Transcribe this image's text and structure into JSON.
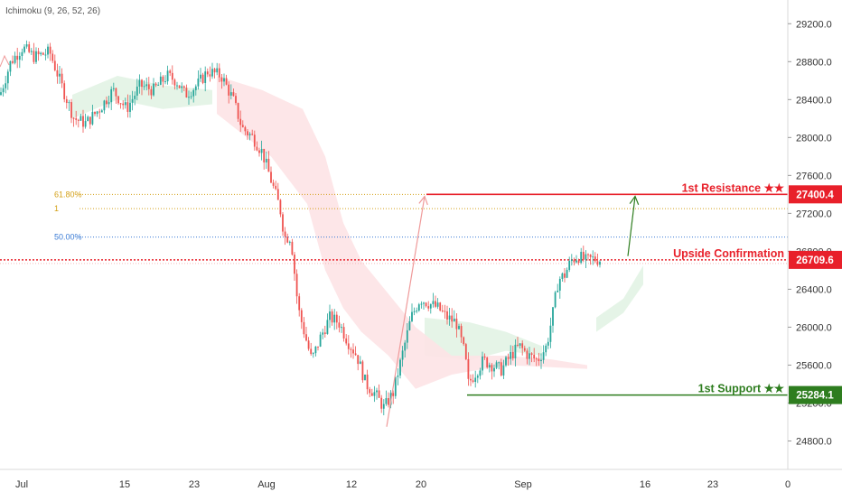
{
  "indicator_label": "Ichimoku (9, 26, 52, 26)",
  "colors": {
    "up": "#26a69a",
    "down": "#ef5350",
    "resistance": "#e8202a",
    "support": "#2e7d1f",
    "fib": "#d4a017",
    "fib50": "#3a7bd5",
    "confirmation": "#e8202a",
    "cloud_bull": "#e2f3e4",
    "cloud_bear": "#fde3e5",
    "axis_text": "#333333"
  },
  "y_axis_ticks": [
    "29200.0",
    "28800.0",
    "28400.0",
    "28000.0",
    "27600.0",
    "27200.0",
    "26800.0",
    "26400.0",
    "26000.0",
    "25600.0",
    "25200.0",
    "24800.0"
  ],
  "x_axis_ticks": [
    "Jul",
    "15",
    "23",
    "Aug",
    "12",
    "20",
    "Sep",
    "16",
    "23",
    "0"
  ],
  "fib_labels": {
    "fib618": "61.80%",
    "fib1": "1",
    "fib50": "50.00%"
  },
  "annotations": {
    "resistance": {
      "label": "1st Resistance ★★",
      "value": "27400.4"
    },
    "confirmation": {
      "label": "Upside Confirmation",
      "value": "26709.6"
    },
    "support": {
      "label": "1st Support ★★",
      "value": "25284.1"
    }
  },
  "chart_data": {
    "type": "candlestick",
    "title": "",
    "xlabel": "",
    "ylabel": "",
    "ylim": [
      24500,
      29450
    ],
    "x_labels": [
      "Jul",
      "15",
      "23",
      "Aug",
      "12",
      "20",
      "Sep",
      "16",
      "23",
      "0"
    ],
    "y_ticks": [
      29200,
      28800,
      28400,
      28000,
      27600,
      27200,
      26800,
      26400,
      26000,
      25600,
      25200,
      24800
    ],
    "grid": false,
    "indicator": "Ichimoku (9, 26, 52, 26)",
    "price_path": [
      [
        0,
        28450
      ],
      [
        12,
        28800
      ],
      [
        25,
        28950
      ],
      [
        38,
        28850
      ],
      [
        55,
        28900
      ],
      [
        70,
        28500
      ],
      [
        82,
        28200
      ],
      [
        95,
        28150
      ],
      [
        110,
        28300
      ],
      [
        125,
        28500
      ],
      [
        140,
        28300
      ],
      [
        155,
        28550
      ],
      [
        170,
        28500
      ],
      [
        185,
        28650
      ],
      [
        195,
        28600
      ],
      [
        205,
        28450
      ],
      [
        218,
        28550
      ],
      [
        230,
        28700
      ],
      [
        245,
        28650
      ],
      [
        258,
        28400
      ],
      [
        268,
        28100
      ],
      [
        280,
        28000
      ],
      [
        290,
        27850
      ],
      [
        300,
        27550
      ],
      [
        310,
        27250
      ],
      [
        315,
        26950
      ],
      [
        322,
        26950
      ],
      [
        330,
        26200
      ],
      [
        338,
        25900
      ],
      [
        345,
        25650
      ],
      [
        355,
        25900
      ],
      [
        365,
        26100
      ],
      [
        375,
        26050
      ],
      [
        385,
        25850
      ],
      [
        395,
        25700
      ],
      [
        405,
        25400
      ],
      [
        415,
        25300
      ],
      [
        425,
        25150
      ],
      [
        435,
        25300
      ],
      [
        445,
        25700
      ],
      [
        455,
        26100
      ],
      [
        465,
        26300
      ],
      [
        475,
        26250
      ],
      [
        485,
        26200
      ],
      [
        495,
        26100
      ],
      [
        505,
        26050
      ],
      [
        515,
        25700
      ],
      [
        518,
        25400
      ],
      [
        525,
        25500
      ],
      [
        535,
        25650
      ],
      [
        545,
        25600
      ],
      [
        555,
        25550
      ],
      [
        565,
        25700
      ],
      [
        575,
        25800
      ],
      [
        585,
        25700
      ],
      [
        595,
        25650
      ],
      [
        605,
        25800
      ],
      [
        612,
        26150
      ],
      [
        618,
        26500
      ],
      [
        625,
        26550
      ],
      [
        632,
        26700
      ],
      [
        640,
        26750
      ],
      [
        648,
        26700
      ],
      [
        656,
        26720
      ],
      [
        665,
        26710
      ]
    ],
    "horizontal_levels": [
      {
        "name": "1st Resistance",
        "value": 27400.4
      },
      {
        "name": "Upside Confirmation",
        "value": 26709.6
      },
      {
        "name": "1st Support",
        "value": 25284.1
      }
    ],
    "fibonacci_levels": [
      {
        "label": "61.80%",
        "value": 27400
      },
      {
        "label": "1",
        "value": 27250
      },
      {
        "label": "50.00%",
        "value": 26950
      }
    ],
    "arrows": [
      {
        "from": [
          428,
          24950
        ],
        "to": [
          470,
          27380
        ],
        "color": "#ef9a9a"
      },
      {
        "from": [
          695,
          26750
        ],
        "to": [
          703,
          27380
        ],
        "color": "#2e7d1f"
      }
    ],
    "cloud": {
      "bull_regions": [
        [
          [
            80,
            28450
          ],
          [
            130,
            28650
          ],
          [
            180,
            28550
          ],
          [
            235,
            28500
          ],
          [
            235,
            28350
          ],
          [
            180,
            28300
          ],
          [
            130,
            28400
          ],
          [
            80,
            28200
          ]
        ],
        [
          [
            470,
            26100
          ],
          [
            520,
            26050
          ],
          [
            560,
            25950
          ],
          [
            600,
            25800
          ],
          [
            600,
            25700
          ],
          [
            560,
            25750
          ],
          [
            520,
            25650
          ],
          [
            470,
            25700
          ]
        ],
        [
          [
            660,
            26100
          ],
          [
            690,
            26300
          ],
          [
            712,
            26650
          ],
          [
            712,
            26450
          ],
          [
            690,
            26150
          ],
          [
            660,
            25950
          ]
        ]
      ],
      "bear_regions": [
        [
          [
            240,
            28650
          ],
          [
            290,
            28500
          ],
          [
            335,
            28300
          ],
          [
            360,
            27800
          ],
          [
            380,
            27100
          ],
          [
            400,
            26700
          ],
          [
            430,
            26350
          ],
          [
            460,
            26000
          ],
          [
            500,
            25700
          ],
          [
            560,
            25700
          ],
          [
            610,
            25660
          ],
          [
            650,
            25600
          ],
          [
            650,
            25560
          ],
          [
            560,
            25600
          ],
          [
            500,
            25500
          ],
          [
            460,
            25350
          ],
          [
            430,
            25700
          ],
          [
            400,
            25950
          ],
          [
            380,
            26200
          ],
          [
            360,
            26600
          ],
          [
            340,
            27300
          ],
          [
            300,
            27800
          ],
          [
            260,
            28100
          ],
          [
            240,
            28250
          ]
        ]
      ]
    }
  }
}
